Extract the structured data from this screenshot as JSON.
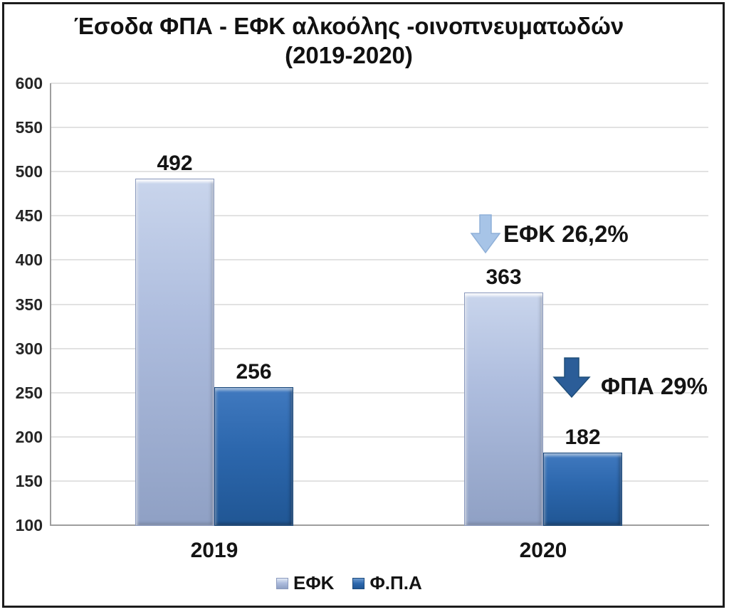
{
  "title": {
    "line1": "Έσοδα ΦΠΑ - ΕΦΚ αλκοόλης -οινοπνευματωδών",
    "line2": "(2019-2020)"
  },
  "chart_data": {
    "type": "bar",
    "categories": [
      "2019",
      "2020"
    ],
    "series": [
      {
        "name": "ΕΦΚ",
        "values": [
          492,
          363
        ],
        "color": "#aebdde"
      },
      {
        "name": "Φ.Π.Α",
        "values": [
          256,
          182
        ],
        "color": "#2c67ad"
      }
    ],
    "ylim": [
      100,
      600
    ],
    "yticks": [
      600,
      550,
      500,
      450,
      400,
      350,
      300,
      250,
      200,
      150,
      100
    ],
    "grid": true,
    "legend_position": "bottom",
    "annotations": [
      {
        "text": "ΕΦΚ 26,2%",
        "arrow_color": "#a7c4e7",
        "arrow_stroke": "#8fb0d8",
        "direction": "down"
      },
      {
        "text": "ΦΠΑ 29%",
        "arrow_color": "#2b5d98",
        "arrow_stroke": "#1f4e79",
        "direction": "down"
      }
    ]
  }
}
